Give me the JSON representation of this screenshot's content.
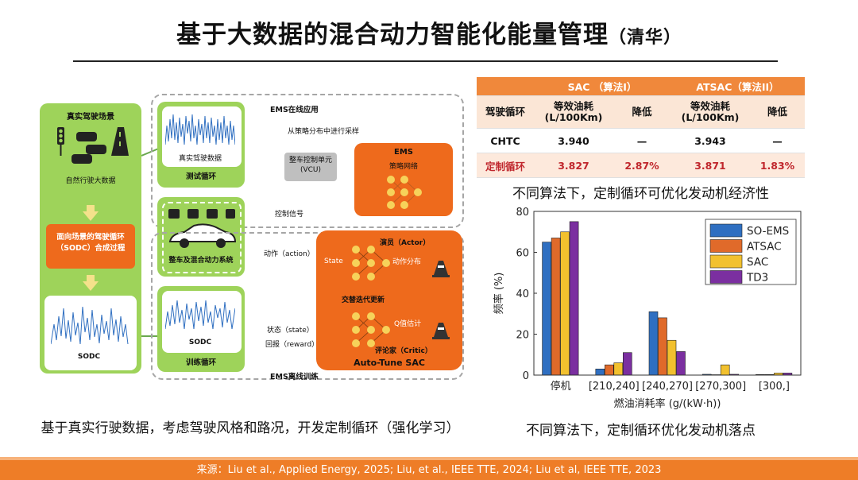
{
  "title": {
    "main": "基于大数据的混合动力智能化能量管理",
    "suffix": "（清华）"
  },
  "diagram": {
    "real_scene_title": "真实驾驶场景",
    "big_data_label": "自然行驶大数据",
    "sodc_process_label": "面向场景的驾驶循环（SODC）合成过程",
    "sodc_label": "SODC",
    "ems_online": "EMS在线应用",
    "real_data_label": "真实驾驶数据",
    "test_cycle": "测试循环",
    "sampling": "从策略分布中进行采样",
    "vcu": "整车控制单元\n(VCU)",
    "ems": "EMS",
    "policy_network": "策略网络",
    "control_signal": "控制信号",
    "vehicle_system": "整车及混合动力系统",
    "action": "动作（action）",
    "state_reward": "状态（state）",
    "reward": "回报（reward）",
    "sodc_small": "SODC",
    "training_cycle": "训练循环",
    "ems_offline": "EMS离线训练",
    "actor": "演员（Actor）",
    "state": "State",
    "action_dist": "动作分布",
    "alternate_update": "交替迭代更新",
    "q_estimate": "Q值估计",
    "critic": "评论家（Critic）",
    "auto_tune": "Auto-Tune SAC"
  },
  "table": {
    "h1": [
      "",
      "SAC （算法I）",
      "ATSAC（算法II）"
    ],
    "h2": [
      "驾驶循环",
      "等效油耗\n(L/100Km)",
      "降低",
      "等效油耗\n(L/100Km)",
      "降低"
    ],
    "rows": [
      [
        "CHTC",
        "3.940",
        "—",
        "3.943",
        "—"
      ],
      [
        "定制循环",
        "3.827",
        "2.87%",
        "3.871",
        "1.83%"
      ]
    ]
  },
  "caption_top": "不同算法下，定制循环可优化发动机经济性",
  "caption_bottom": "不同算法下，定制循环优化发动机落点",
  "left_caption": "基于真实行驶数据，考虑驾驶风格和路况，开发定制循环（强化学习）",
  "footer": "来源：Liu et al., Applied Energy, 2025; Liu, et al., IEEE TTE, 2024; Liu et al, IEEE TTE, 2023",
  "chart_data": {
    "type": "bar",
    "categories": [
      "停机",
      "[210,240]",
      "[240,270]",
      "[270,300]",
      "[300,]"
    ],
    "series": [
      {
        "name": "SO-EMS",
        "color": "#2f6fc1",
        "values": [
          65,
          3,
          31,
          0.4,
          0.3
        ]
      },
      {
        "name": "ATSAC",
        "color": "#e06a2a",
        "values": [
          67,
          5,
          28,
          0.2,
          0.3
        ]
      },
      {
        "name": "SAC",
        "color": "#f2c12e",
        "values": [
          70,
          6,
          17,
          5,
          1
        ]
      },
      {
        "name": "TD3",
        "color": "#7b2fa0",
        "values": [
          75,
          11,
          11.5,
          0.4,
          1
        ]
      }
    ],
    "xlabel": "燃油消耗率 (g/(kW·h))",
    "ylabel": "频率 (%)",
    "ylim": [
      0,
      80
    ],
    "yticks": [
      "0",
      "20",
      "40",
      "60",
      "80"
    ],
    "legend_position": "top-right"
  }
}
